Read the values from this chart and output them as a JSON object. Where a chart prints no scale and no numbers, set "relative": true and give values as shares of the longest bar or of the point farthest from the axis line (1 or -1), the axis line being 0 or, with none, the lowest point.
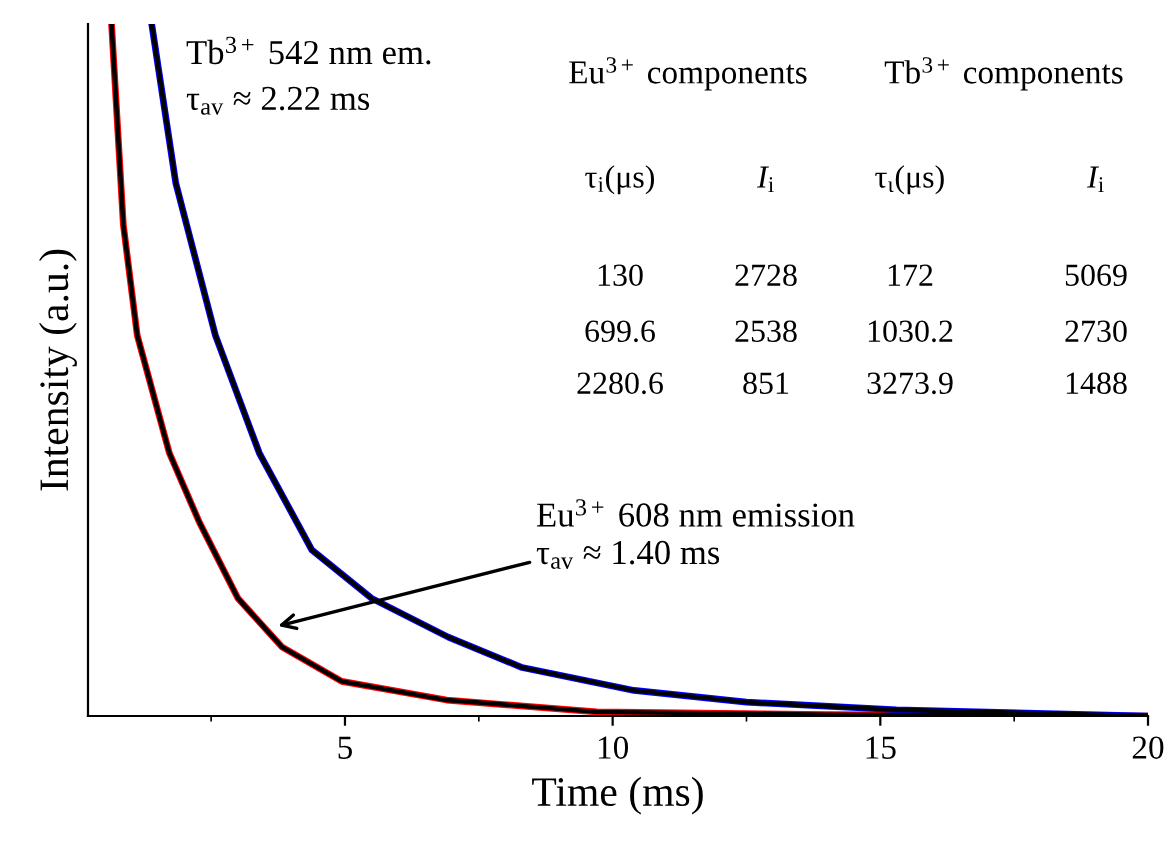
{
  "chart_data": {
    "type": "line",
    "xlabel": "Time (ms)",
    "ylabel": "Intensity (a.u.)",
    "relative": true,
    "xlim": [
      0.2,
      20
    ],
    "xticks": [
      5,
      10,
      15,
      20
    ],
    "series": [
      {
        "color": "#ff0000",
        "x": [
          0.64,
          0.86,
          1.12,
          1.72,
          2.28,
          3.0,
          3.82,
          4.94,
          6.9,
          9.7,
          14,
          20
        ],
        "values": [
          1,
          0.71,
          0.55,
          0.38,
          0.28,
          0.17,
          0.1,
          0.05,
          0.023,
          0.006,
          0.002,
          0
        ]
      },
      {
        "color": "#0000ff",
        "x": [
          1.39,
          1.84,
          2.58,
          3.4,
          4.38,
          5.5,
          6.93,
          8.31,
          10.4,
          12.5,
          15.3,
          20
        ],
        "values": [
          1,
          0.77,
          0.55,
          0.38,
          0.24,
          0.17,
          0.114,
          0.07,
          0.037,
          0.02,
          0.009,
          0
        ]
      },
      {
        "color": "#000000",
        "x": [
          0.64,
          0.86,
          1.12,
          1.72,
          2.28,
          3.0,
          3.82,
          4.94,
          6.9,
          9.7,
          14,
          20
        ],
        "values": [
          1,
          0.71,
          0.55,
          0.38,
          0.28,
          0.17,
          0.1,
          0.05,
          0.023,
          0.006,
          0.002,
          0
        ]
      },
      {
        "color": "#000000",
        "x": [
          1.39,
          1.84,
          2.58,
          3.4,
          4.38,
          5.5,
          6.93,
          8.31,
          10.4,
          12.5,
          15.3,
          20
        ],
        "values": [
          1,
          0.77,
          0.55,
          0.38,
          0.24,
          0.17,
          0.114,
          0.07,
          0.037,
          0.02,
          0.009,
          0
        ]
      }
    ],
    "annotations": [
      "Tb$^{3+}$ 542 nm em.\nτ$_{av}$ ≈ 2.22 ms",
      {
        "text": "Eu$^{3+}$ 608 nm emission",
        "x": 3.75,
        "y": 0.13
      },
      "τ$_{av}$ ≈ 1.40 ms",
      "Eu$^{3+}$ components",
      "Tb$^{3+}$ components",
      "τ$_{i}$(μs)",
      "I$_{i}$",
      "τ$_{ι}$(μs)",
      "I$_{i}$",
      "130",
      "2728",
      "172",
      "5069",
      "699.6",
      "2538",
      "1030.2",
      "2730",
      "2280.6",
      "851",
      "3273.9",
      "1488"
    ]
  }
}
